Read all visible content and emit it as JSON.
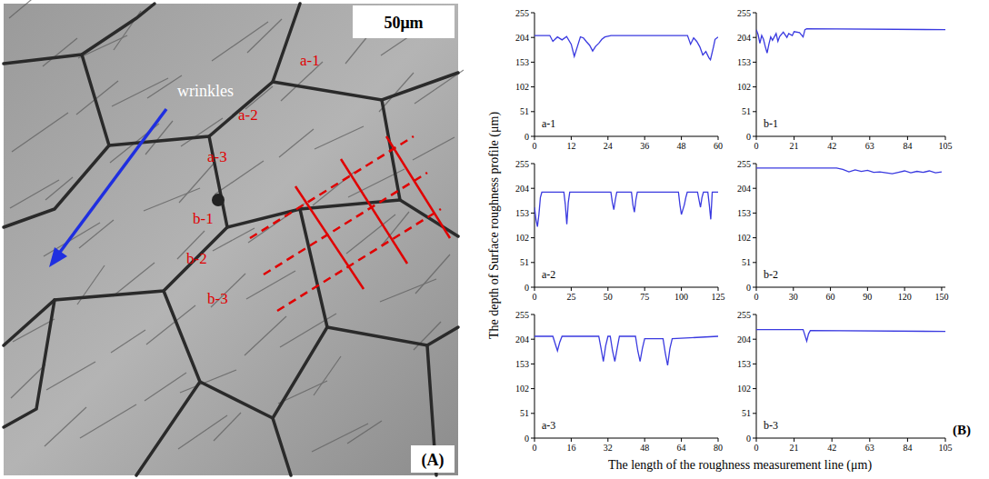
{
  "panel_a": {
    "scale_bar": "50μm",
    "letter": "(A)",
    "arrow_label": "wrinkles",
    "lines": [
      "a-1",
      "a-2",
      "a-3",
      "b-1",
      "b-2",
      "b-3"
    ]
  },
  "figure_b": {
    "letter": "(B)",
    "xlabel": "The length of the roughness measurement line (μm)",
    "ylabel": "The depth of Surface roughness profile (μm)"
  },
  "chart_data": [
    {
      "type": "line",
      "title": "a-1",
      "color": "#3a3ae0",
      "x": [
        0,
        5,
        6,
        7.5,
        9,
        10.5,
        12,
        13,
        14,
        15,
        16,
        17,
        18,
        19,
        20,
        21,
        22,
        23,
        25,
        50,
        51,
        52,
        53,
        54,
        55,
        56,
        57,
        57.5,
        58.5,
        59,
        60
      ],
      "values": [
        208,
        208,
        196,
        205,
        199,
        206,
        190,
        165,
        185,
        205,
        203,
        195,
        188,
        176,
        186,
        192,
        200,
        205,
        208,
        208,
        190,
        203,
        196,
        185,
        168,
        175,
        162,
        158,
        185,
        200,
        205
      ],
      "xlim": [
        0,
        60
      ],
      "xticks": [
        0,
        12,
        24,
        36,
        48,
        60
      ],
      "ylim": [
        0,
        255
      ],
      "yticks": [
        0,
        51,
        102,
        153,
        204,
        255
      ]
    },
    {
      "type": "line",
      "title": "b-1",
      "color": "#3a3ae0",
      "x": [
        0,
        1,
        2,
        3,
        4,
        5,
        6,
        7,
        8,
        9,
        11,
        12,
        13,
        15,
        17,
        18,
        20,
        21,
        24,
        26,
        27,
        28,
        105
      ],
      "values": [
        220,
        210,
        192,
        208,
        200,
        185,
        172,
        190,
        205,
        198,
        212,
        196,
        206,
        215,
        204,
        212,
        208,
        216,
        214,
        205,
        220,
        222,
        220
      ],
      "xlim": [
        0,
        105
      ],
      "xticks": [
        0,
        21,
        42,
        63,
        84,
        105
      ],
      "ylim": [
        0,
        255
      ],
      "yticks": [
        0,
        51,
        102,
        153,
        204,
        255
      ]
    },
    {
      "type": "line",
      "title": "a-2",
      "color": "#3a3ae0",
      "x": [
        0,
        1,
        2,
        3,
        4,
        5,
        20,
        21,
        22,
        23,
        24,
        52,
        53,
        54,
        55,
        56,
        66,
        67,
        68,
        69,
        70,
        98,
        99,
        100,
        101,
        102,
        103,
        104,
        111,
        112,
        113,
        114,
        115,
        118,
        119,
        120,
        121,
        125
      ],
      "values": [
        165,
        140,
        125,
        150,
        185,
        196,
        196,
        170,
        130,
        175,
        196,
        196,
        175,
        160,
        180,
        196,
        196,
        170,
        155,
        180,
        196,
        196,
        170,
        150,
        160,
        170,
        185,
        196,
        196,
        180,
        165,
        185,
        196,
        196,
        170,
        140,
        196,
        196
      ],
      "xlim": [
        0,
        125
      ],
      "xticks": [
        0,
        25,
        50,
        75,
        100,
        125
      ],
      "ylim": [
        0,
        255
      ],
      "yticks": [
        0,
        51,
        102,
        153,
        204,
        255
      ]
    },
    {
      "type": "line",
      "title": "b-2",
      "color": "#3a3ae0",
      "x": [
        0,
        65,
        70,
        75,
        80,
        85,
        90,
        95,
        100,
        105,
        110,
        115,
        120,
        125,
        130,
        135,
        140,
        145,
        150
      ],
      "values": [
        246,
        246,
        243,
        238,
        242,
        239,
        241,
        237,
        238,
        236,
        234,
        237,
        240,
        236,
        239,
        237,
        240,
        236,
        238
      ],
      "xlim": [
        0,
        153
      ],
      "xticks": [
        0,
        30,
        60,
        90,
        120,
        150
      ],
      "ylim": [
        0,
        255
      ],
      "yticks": [
        0,
        51,
        102,
        153,
        204,
        255
      ]
    },
    {
      "type": "line",
      "title": "a-3",
      "color": "#3a3ae0",
      "x": [
        0,
        8,
        9,
        10,
        11,
        12,
        28,
        29,
        30,
        31,
        32,
        33,
        34,
        35,
        36,
        37,
        44,
        45,
        46,
        47,
        48,
        56,
        57,
        58,
        59,
        60,
        80
      ],
      "values": [
        210,
        210,
        195,
        180,
        198,
        210,
        210,
        185,
        158,
        190,
        210,
        210,
        180,
        158,
        185,
        210,
        210,
        180,
        158,
        185,
        205,
        205,
        175,
        150,
        185,
        205,
        210
      ],
      "xlim": [
        0,
        80
      ],
      "xticks": [
        0,
        16,
        32,
        48,
        64,
        80
      ],
      "ylim": [
        0,
        255
      ],
      "yticks": [
        0,
        51,
        102,
        153,
        204,
        255
      ]
    },
    {
      "type": "line",
      "title": "b-3",
      "color": "#3a3ae0",
      "x": [
        0,
        26,
        27,
        28,
        29,
        30,
        105
      ],
      "values": [
        224,
        224,
        212,
        200,
        215,
        222,
        220
      ],
      "xlim": [
        0,
        105
      ],
      "xticks": [
        0,
        21,
        42,
        63,
        84,
        105
      ],
      "ylim": [
        0,
        255
      ],
      "yticks": [
        0,
        51,
        102,
        153,
        204,
        255
      ]
    }
  ]
}
